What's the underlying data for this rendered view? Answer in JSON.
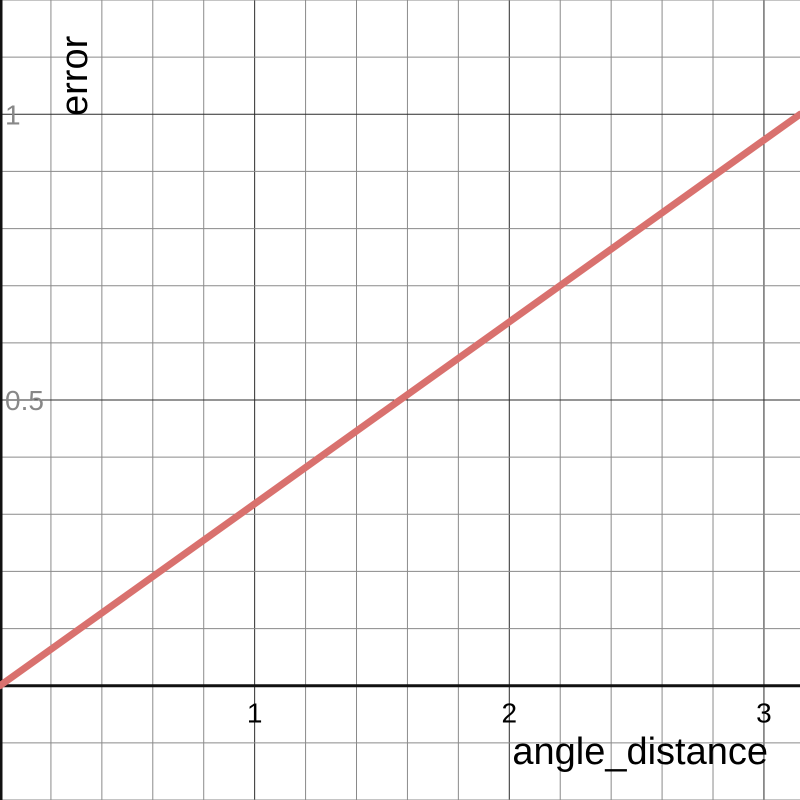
{
  "chart_data": {
    "type": "line",
    "title": "",
    "xlabel": "angle_distance",
    "ylabel": "error",
    "xlim": [
      0,
      3.1416
    ],
    "ylim": [
      -0.2,
      1.2
    ],
    "grid": true,
    "legend": "none",
    "x_ticks": [
      {
        "value": 1,
        "label": "1"
      },
      {
        "value": 2,
        "label": "2"
      },
      {
        "value": 3,
        "label": "3"
      }
    ],
    "y_ticks": [
      {
        "value": 0.5,
        "label": "0.5"
      },
      {
        "value": 1,
        "label": "1"
      }
    ],
    "series": [
      {
        "color": "#d9716e",
        "x": [
          0,
          3.1416
        ],
        "y": [
          0,
          1
        ]
      }
    ],
    "colors": {
      "line": "#d9716e",
      "x_tick_label": "#000000",
      "y_tick_label": "#888888"
    }
  }
}
